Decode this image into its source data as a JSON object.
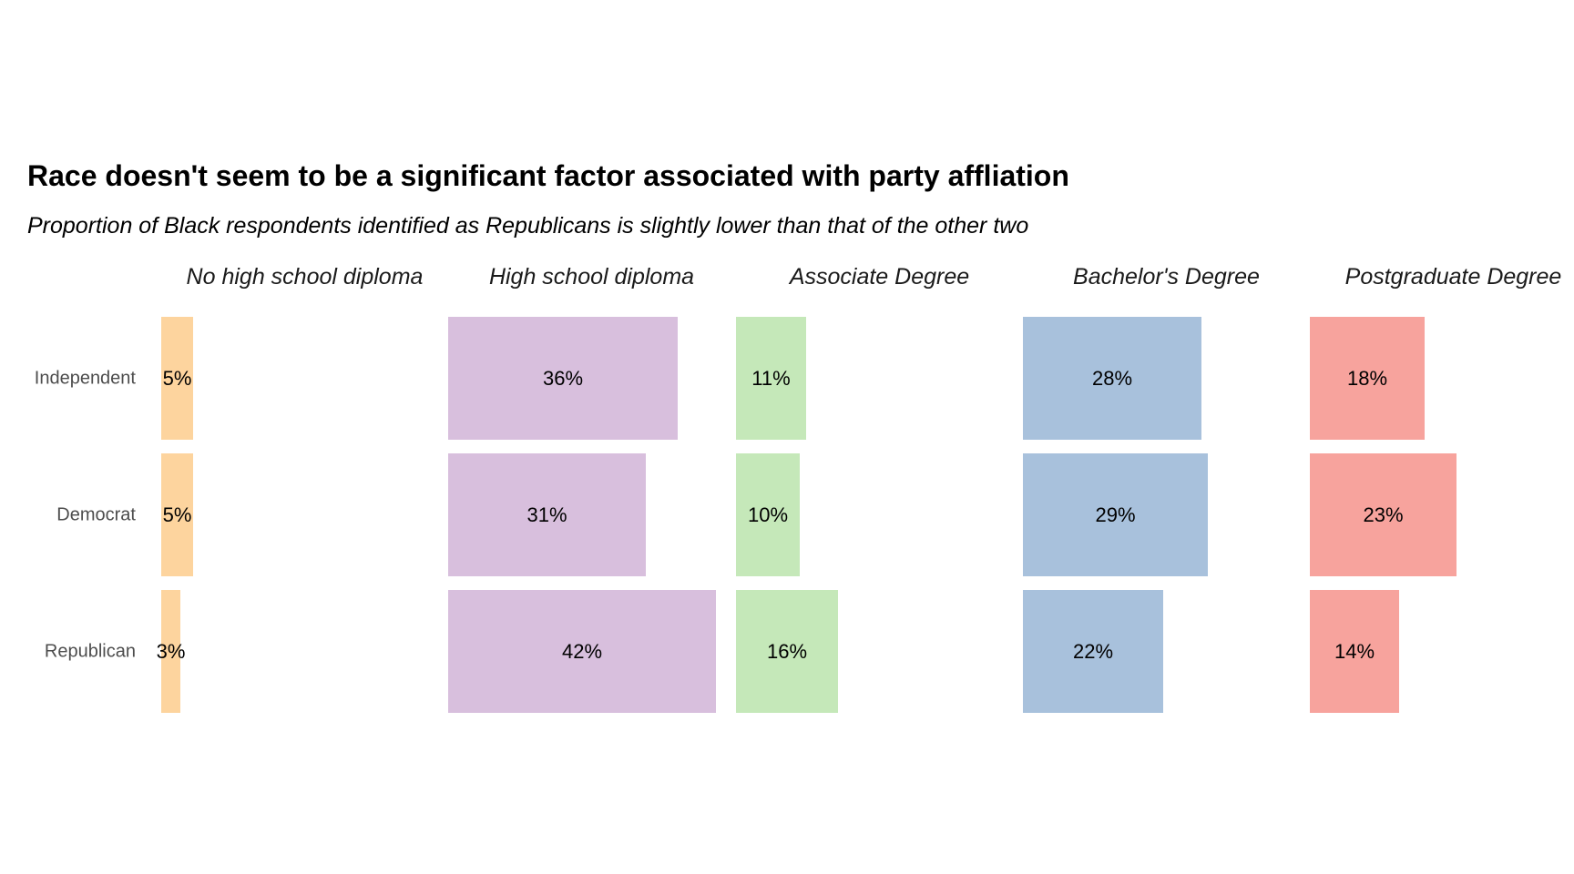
{
  "chart_data": {
    "type": "bar",
    "orientation": "horizontal",
    "title": "Race doesn't seem to be a significant factor associated with party affliation",
    "subtitle": "Proportion of Black respondents identified as Republicans is slightly lower than that of the other two",
    "categories": [
      "Independent",
      "Democrat",
      "Republican"
    ],
    "series": [
      {
        "name": "No high school diploma",
        "color": "#fdd49e",
        "values": [
          5,
          5,
          3
        ],
        "labels": [
          "5%",
          "5%",
          "3%"
        ]
      },
      {
        "name": "High school diploma",
        "color": "#d8bfdd",
        "values": [
          36,
          31,
          42
        ],
        "labels": [
          "36%",
          "31%",
          "42%"
        ]
      },
      {
        "name": "Associate Degree",
        "color": "#c5e8b9",
        "values": [
          11,
          10,
          16
        ],
        "labels": [
          "11%",
          "10%",
          "16%"
        ]
      },
      {
        "name": "Bachelor's Degree",
        "color": "#a8c1dc",
        "values": [
          28,
          29,
          22
        ],
        "labels": [
          "28%",
          "29%",
          "22%"
        ]
      },
      {
        "name": "Postgraduate Degree",
        "color": "#f7a39d",
        "values": [
          18,
          23,
          14
        ],
        "labels": [
          "18%",
          "23%",
          "14%"
        ]
      }
    ],
    "unit": "%",
    "xlim": [
      0,
      45
    ],
    "grid": false,
    "legend": "none"
  }
}
